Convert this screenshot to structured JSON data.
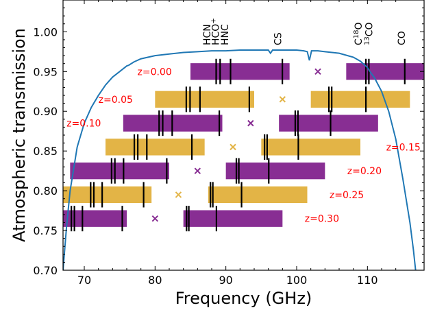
{
  "chart_data": {
    "type": "line",
    "xlabel": "Frequency (GHz)",
    "ylabel": "Atmospheric transmission",
    "xlim": [
      67,
      118
    ],
    "ylim": [
      0.7,
      1.04
    ],
    "x_ticks": [
      70,
      80,
      90,
      100,
      110
    ],
    "y_ticks": [
      "0.70",
      "0.75",
      "0.80",
      "0.85",
      "0.90",
      "0.95",
      "1.00"
    ],
    "grid": false,
    "colors": {
      "curve": "#1f77b4",
      "purple": "#882e93",
      "gold": "#e3b446",
      "line_marker": "#000000",
      "z_label": "#ff0000"
    },
    "transmission": {
      "x": [
        67.0,
        67.5,
        68.0,
        69.0,
        70.0,
        71.0,
        72.0,
        73.0,
        74.0,
        75.0,
        76.0,
        76.3,
        77.0,
        78.0,
        80.0,
        82.0,
        84.0,
        86.0,
        88.0,
        90.0,
        92.0,
        94.0,
        96.0,
        96.3,
        96.6,
        98.0,
        100.0,
        101.0,
        101.5,
        101.8,
        102.1,
        103.0,
        104.0,
        106.0,
        108.0,
        109.0,
        110.0,
        110.5,
        111.0,
        112.0,
        113.0,
        114.0,
        115.0,
        116.0,
        116.5,
        116.8
      ],
      "y": [
        0.7,
        0.755,
        0.8,
        0.855,
        0.885,
        0.905,
        0.92,
        0.933,
        0.943,
        0.95,
        0.957,
        0.958,
        0.962,
        0.966,
        0.97,
        0.972,
        0.974,
        0.975,
        0.976,
        0.976,
        0.977,
        0.977,
        0.977,
        0.973,
        0.977,
        0.977,
        0.977,
        0.976,
        0.975,
        0.964,
        0.976,
        0.976,
        0.975,
        0.973,
        0.968,
        0.963,
        0.955,
        0.948,
        0.942,
        0.925,
        0.9,
        0.865,
        0.815,
        0.76,
        0.725,
        0.7
      ]
    },
    "lines": [
      {
        "name": "HCN",
        "rest_ghz": 88.63
      },
      {
        "name": "HCO+",
        "rest_ghz": 89.19
      },
      {
        "name": "HNC",
        "rest_ghz": 90.66
      },
      {
        "name": "CS",
        "rest_ghz": 97.98
      },
      {
        "name": "C18O",
        "rest_ghz": 109.78
      },
      {
        "name": "13CO",
        "rest_ghz": 110.2
      },
      {
        "name": "CO",
        "rest_ghz": 115.27
      }
    ],
    "line_labels": [
      {
        "main": "HCN",
        "sup": "",
        "x": 87.8,
        "order": "normal"
      },
      {
        "main": "HCO",
        "sup": "+",
        "x": 89.0,
        "order": "normal"
      },
      {
        "main": "HNC",
        "sup": "",
        "x": 90.3,
        "order": "normal"
      },
      {
        "main": "CS",
        "sup": "",
        "x": 97.8,
        "order": "normal"
      },
      {
        "main": "C",
        "sup": "18",
        "post": "O",
        "x": 109.2,
        "order": "normal"
      },
      {
        "main": "CO",
        "sup": "13",
        "x": 110.7,
        "order": "pre"
      },
      {
        "main": "CO",
        "sup": "",
        "x": 115.3,
        "order": "normal"
      }
    ],
    "bands": [
      {
        "z": "0.00",
        "label": "z=0.00",
        "y": 0.95,
        "color": "purple",
        "lo": [
          85.0,
          107.0
        ],
        "hi": [
          99.0,
          118.0
        ],
        "lo_to": 99.0,
        "hi_from": 107.0,
        "lo_edge": 85.0,
        "label_x": 77.5,
        "label_anchor": "start",
        "center": 103.0
      },
      {
        "z": "0.05",
        "label": "z=0.05",
        "y": 0.915,
        "color": "gold",
        "lo_edge": 80.0,
        "lo_to": 94.0,
        "hi_from": 102.0,
        "hi_edge": 116.0,
        "label_x": 72.0,
        "label_anchor": "start",
        "center": 98.0
      },
      {
        "z": "0.10",
        "label": "z=0.10",
        "y": 0.885,
        "color": "purple",
        "lo_edge": 75.5,
        "lo_to": 89.5,
        "hi_from": 97.5,
        "hi_edge": 111.5,
        "label_x": 67.5,
        "label_anchor": "start",
        "center": 93.5
      },
      {
        "z": "0.15",
        "label": "z=0.15",
        "y": 0.855,
        "color": "gold",
        "lo_edge": 73.0,
        "lo_to": 87.0,
        "hi_from": 95.0,
        "hi_edge": 109.0,
        "label_x": 117.5,
        "label_anchor": "end",
        "center": 91.0
      },
      {
        "z": "0.20",
        "label": "z=0.20",
        "y": 0.825,
        "color": "purple",
        "lo_edge": 68.0,
        "lo_to": 82.0,
        "hi_from": 90.0,
        "hi_edge": 104.0,
        "label_x": 112.0,
        "label_anchor": "end",
        "center": 86.0
      },
      {
        "z": "0.25",
        "label": "z=0.25",
        "y": 0.795,
        "color": "gold",
        "lo_edge": 67.0,
        "lo_to": 79.5,
        "hi_from": 87.5,
        "hi_edge": 101.5,
        "label_x": 109.5,
        "label_anchor": "end",
        "center": 83.3
      },
      {
        "z": "0.30",
        "label": "z=0.30",
        "y": 0.765,
        "color": "purple",
        "lo_edge": 67.0,
        "lo_to": 76.0,
        "hi_from": 84.0,
        "hi_edge": 98.0,
        "label_x": 106.0,
        "label_anchor": "end",
        "center": 80.0
      }
    ],
    "band_half_height": 0.0105,
    "z_values": [
      0.0,
      0.05,
      0.1,
      0.15,
      0.2,
      0.25,
      0.3
    ]
  }
}
